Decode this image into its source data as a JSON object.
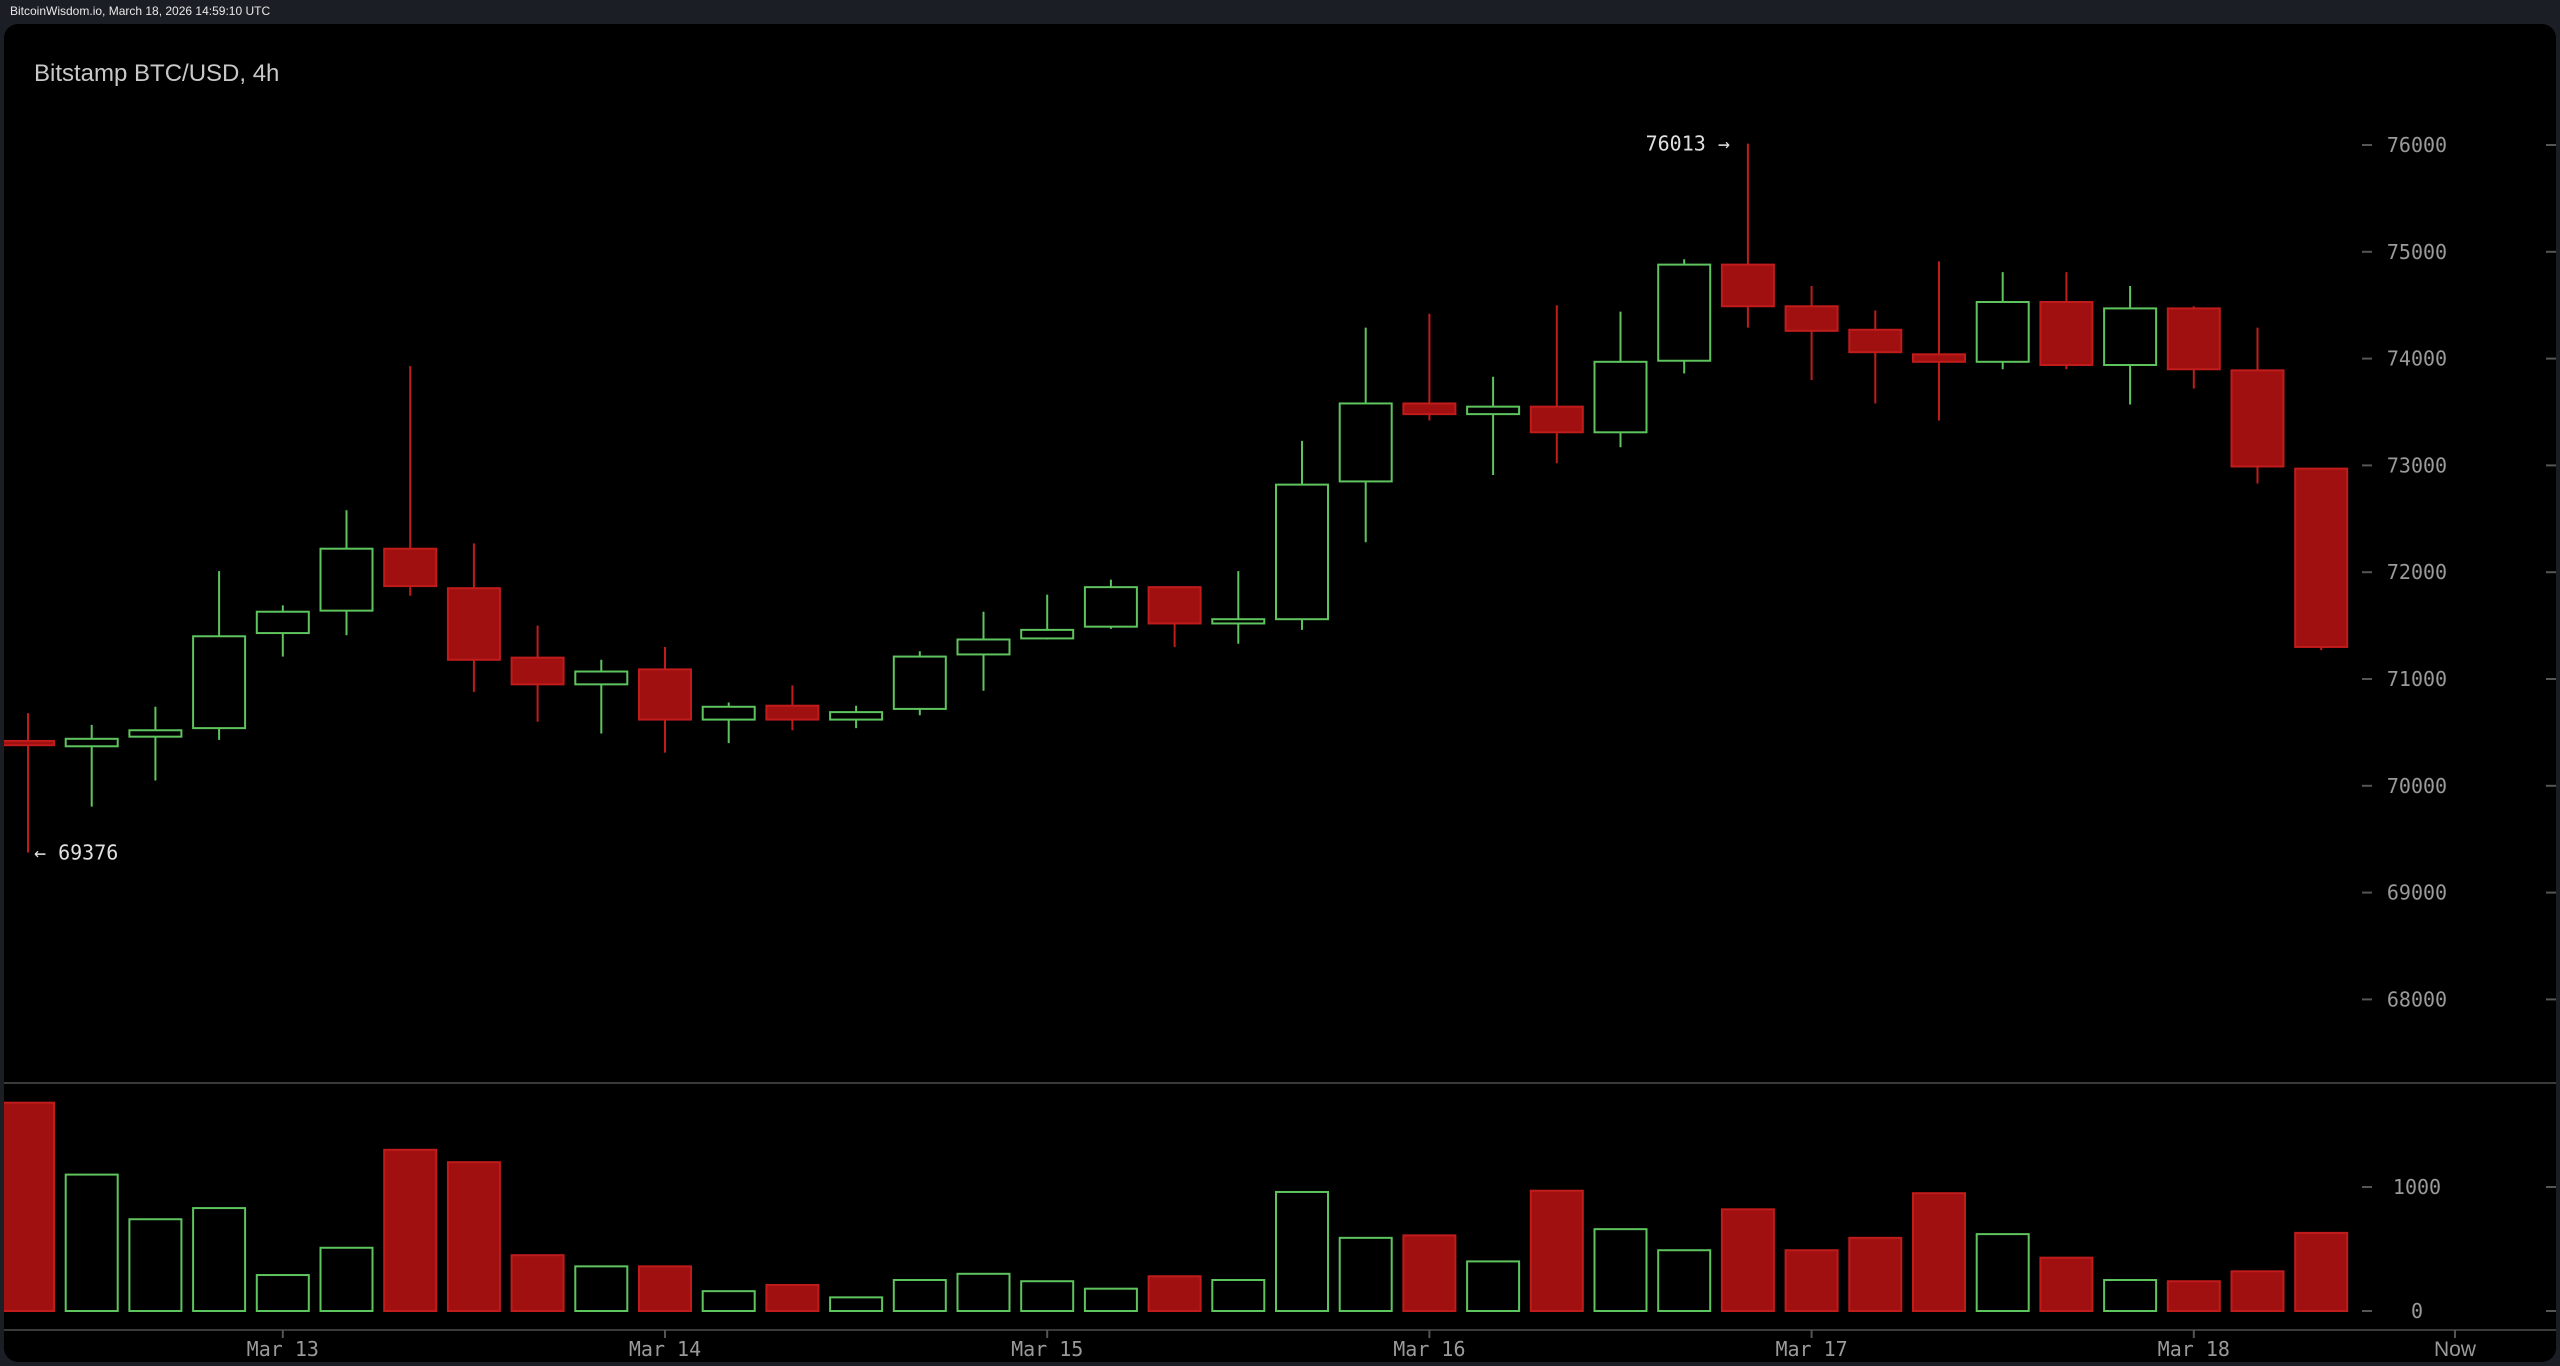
{
  "header": {
    "source_line": "BitcoinWisdom.io, March 18, 2026 14:59:10 UTC"
  },
  "chart_data": {
    "type": "candlestick",
    "title": "Bitstamp BTC/USD, 4h",
    "colors": {
      "up": "#5ec45e",
      "down": "#a01010",
      "down_border": "#c01c1c",
      "background": "#000000",
      "grid_line": "#3a3a3a"
    },
    "price_axis": {
      "ylim": [
        67300,
        76300
      ],
      "ticks": [
        68000,
        69000,
        70000,
        71000,
        72000,
        73000,
        74000,
        75000,
        76000
      ]
    },
    "volume_axis": {
      "ylim": [
        0,
        2200
      ],
      "ticks": [
        0,
        1000
      ]
    },
    "x_ticks": [
      {
        "label": "Mar 13",
        "index": 4
      },
      {
        "label": "Mar 14",
        "index": 10
      },
      {
        "label": "Mar 15",
        "index": 16
      },
      {
        "label": "Mar 16",
        "index": 22
      },
      {
        "label": "Mar 17",
        "index": 28
      },
      {
        "label": "Mar 18",
        "index": 34
      },
      {
        "label": "Now",
        "index": 38.1
      }
    ],
    "annotations": {
      "high_label": "76013 →",
      "low_label": "← 69376",
      "high_value": 76013,
      "low_value": 69376,
      "high_index": 27,
      "low_index": 0
    },
    "candles": [
      {
        "o": 70420,
        "h": 70680,
        "l": 69376,
        "c": 70380,
        "v": 1680
      },
      {
        "o": 70370,
        "h": 70570,
        "l": 69805,
        "c": 70440,
        "v": 1100
      },
      {
        "o": 70460,
        "h": 70740,
        "l": 70050,
        "c": 70520,
        "v": 740
      },
      {
        "o": 70540,
        "h": 72010,
        "l": 70430,
        "c": 71400,
        "v": 830
      },
      {
        "o": 71430,
        "h": 71690,
        "l": 71210,
        "c": 71630,
        "v": 290
      },
      {
        "o": 71640,
        "h": 72580,
        "l": 71410,
        "c": 72220,
        "v": 510
      },
      {
        "o": 72220,
        "h": 73930,
        "l": 71780,
        "c": 71870,
        "v": 1300
      },
      {
        "o": 71850,
        "h": 72270,
        "l": 70880,
        "c": 71180,
        "v": 1200
      },
      {
        "o": 71200,
        "h": 71500,
        "l": 70600,
        "c": 70950,
        "v": 450
      },
      {
        "o": 70950,
        "h": 71180,
        "l": 70490,
        "c": 71070,
        "v": 360
      },
      {
        "o": 71090,
        "h": 71300,
        "l": 70310,
        "c": 70620,
        "v": 360
      },
      {
        "o": 70620,
        "h": 70780,
        "l": 70400,
        "c": 70740,
        "v": 160
      },
      {
        "o": 70750,
        "h": 70940,
        "l": 70520,
        "c": 70620,
        "v": 210
      },
      {
        "o": 70620,
        "h": 70750,
        "l": 70540,
        "c": 70690,
        "v": 110
      },
      {
        "o": 70720,
        "h": 71260,
        "l": 70660,
        "c": 71210,
        "v": 250
      },
      {
        "o": 71230,
        "h": 71630,
        "l": 70890,
        "c": 71370,
        "v": 300
      },
      {
        "o": 71380,
        "h": 71790,
        "l": 71370,
        "c": 71460,
        "v": 240
      },
      {
        "o": 71490,
        "h": 71930,
        "l": 71470,
        "c": 71860,
        "v": 180
      },
      {
        "o": 71860,
        "h": 71860,
        "l": 71300,
        "c": 71520,
        "v": 280
      },
      {
        "o": 71520,
        "h": 72010,
        "l": 71330,
        "c": 71560,
        "v": 250
      },
      {
        "o": 71560,
        "h": 73230,
        "l": 71460,
        "c": 72820,
        "v": 960
      },
      {
        "o": 72850,
        "h": 74290,
        "l": 72280,
        "c": 73580,
        "v": 590
      },
      {
        "o": 73580,
        "h": 74420,
        "l": 73420,
        "c": 73480,
        "v": 610
      },
      {
        "o": 73480,
        "h": 73830,
        "l": 72910,
        "c": 73550,
        "v": 400
      },
      {
        "o": 73550,
        "h": 74500,
        "l": 73020,
        "c": 73310,
        "v": 970
      },
      {
        "o": 73310,
        "h": 74440,
        "l": 73170,
        "c": 73970,
        "v": 660
      },
      {
        "o": 73980,
        "h": 74930,
        "l": 73860,
        "c": 74880,
        "v": 490
      },
      {
        "o": 74880,
        "h": 76013,
        "l": 74290,
        "c": 74490,
        "v": 820
      },
      {
        "o": 74490,
        "h": 74680,
        "l": 73800,
        "c": 74260,
        "v": 490
      },
      {
        "o": 74270,
        "h": 74450,
        "l": 73580,
        "c": 74060,
        "v": 590
      },
      {
        "o": 74040,
        "h": 74910,
        "l": 73420,
        "c": 73970,
        "v": 950
      },
      {
        "o": 73970,
        "h": 74810,
        "l": 73900,
        "c": 74530,
        "v": 620
      },
      {
        "o": 74530,
        "h": 74810,
        "l": 73900,
        "c": 73940,
        "v": 430
      },
      {
        "o": 73940,
        "h": 74680,
        "l": 73570,
        "c": 74470,
        "v": 250
      },
      {
        "o": 74470,
        "h": 74490,
        "l": 73720,
        "c": 73900,
        "v": 240
      },
      {
        "o": 73890,
        "h": 74290,
        "l": 72830,
        "c": 72990,
        "v": 320
      },
      {
        "o": 72970,
        "h": 72970,
        "l": 71270,
        "c": 71300,
        "v": 630
      }
    ]
  }
}
